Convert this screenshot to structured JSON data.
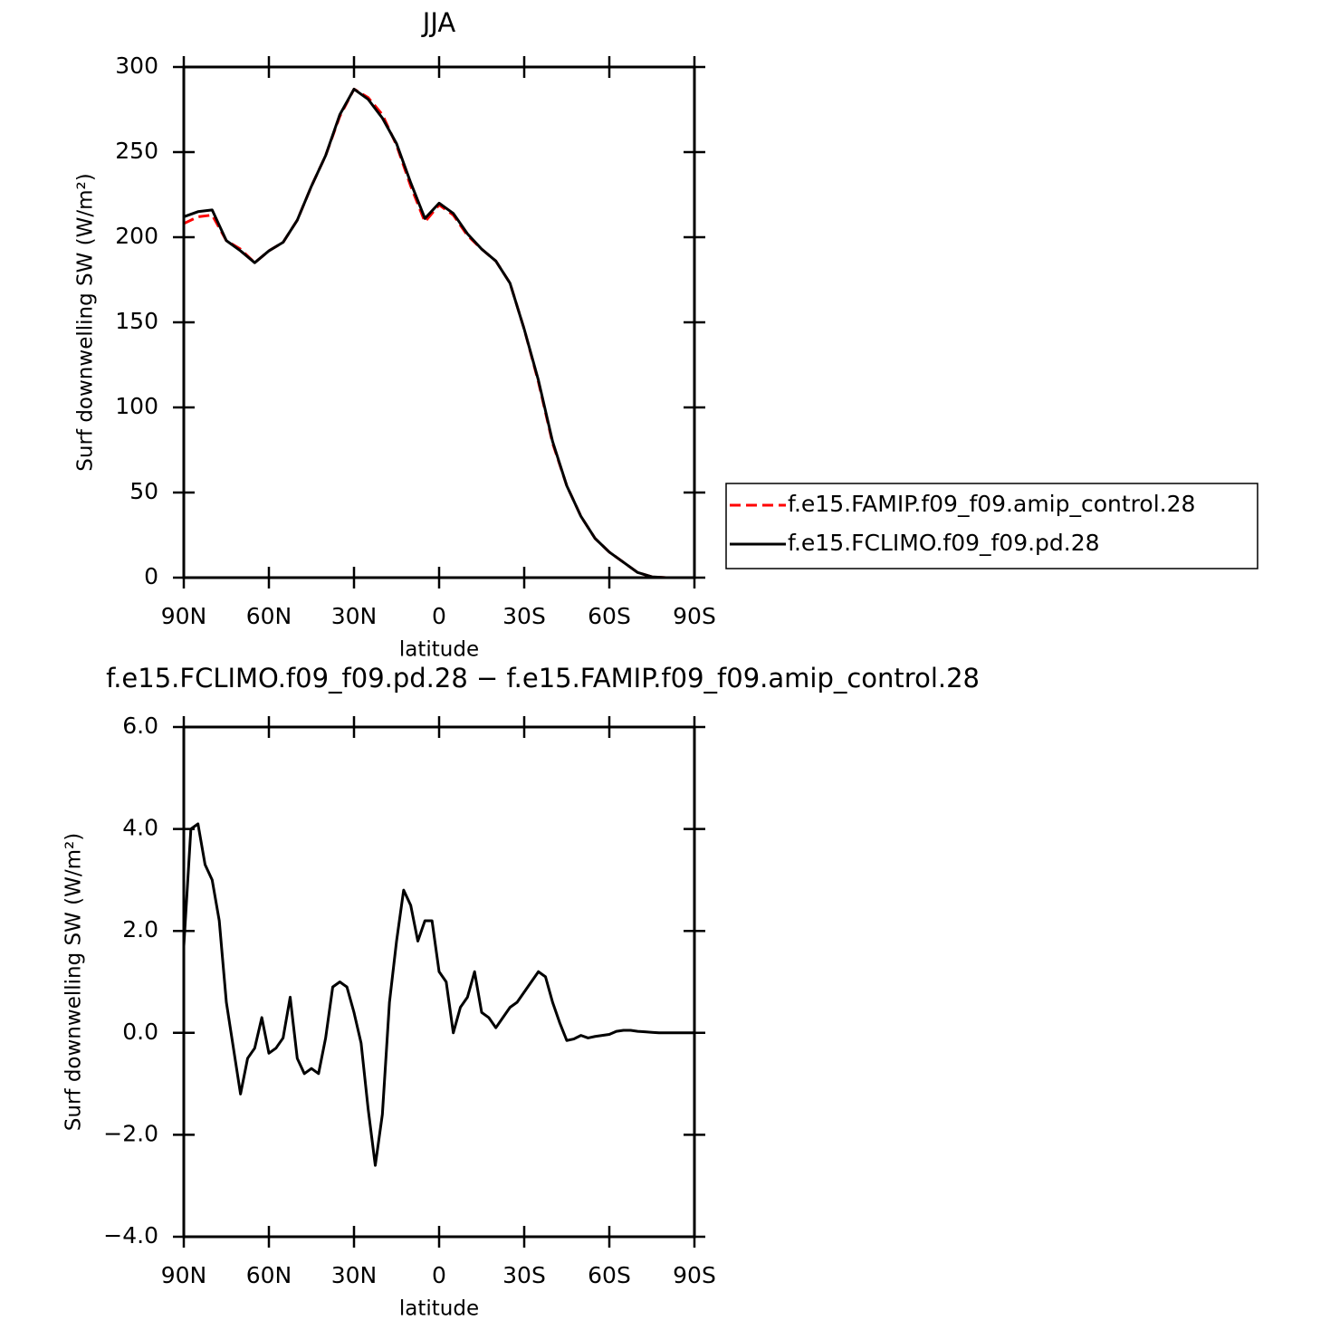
{
  "chart_data": [
    {
      "type": "line",
      "title": "JJA",
      "xlabel": "latitude",
      "ylabel": "Surf downwelling SW (W/m²)",
      "x": [
        90,
        85,
        80,
        75,
        70,
        65,
        60,
        55,
        50,
        45,
        40,
        35,
        30,
        25,
        20,
        15,
        10,
        5,
        0,
        -5,
        -10,
        -15,
        -20,
        -25,
        -30,
        -35,
        -40,
        -45,
        -50,
        -55,
        -60,
        -65,
        -70,
        -75,
        -80,
        -85,
        -90
      ],
      "series": [
        {
          "name": "f.e15.FAMIP.f09_f09.amip_control.28",
          "color": "#ff0000",
          "linestyle": "dashed",
          "values": [
            208,
            212,
            213,
            198,
            193,
            185,
            192,
            197,
            210,
            230,
            248,
            271,
            287,
            282,
            272,
            254,
            230,
            209,
            219,
            213,
            201,
            193,
            186,
            173,
            146,
            115,
            79,
            54,
            36,
            23,
            15,
            9,
            3,
            0.5,
            0,
            0,
            0
          ]
        },
        {
          "name": "f.e15.FCLIMO.f09_f09.pd.28",
          "color": "#000000",
          "linestyle": "solid",
          "values": [
            212,
            215,
            216,
            198,
            192,
            185,
            192,
            197,
            210,
            230,
            248,
            272,
            287,
            281,
            270,
            255,
            232,
            211,
            220,
            214,
            202,
            193,
            186,
            173,
            146,
            116,
            80,
            54,
            36,
            23,
            15,
            9,
            3,
            0.5,
            0,
            0,
            0
          ]
        }
      ],
      "xlim": [
        90,
        -90
      ],
      "xticks": [
        {
          "value": 90,
          "label": "90N"
        },
        {
          "value": 60,
          "label": "60N"
        },
        {
          "value": 30,
          "label": "30N"
        },
        0,
        {
          "value": -30,
          "label": "30S"
        },
        {
          "value": -60,
          "label": "60S"
        },
        {
          "value": -90,
          "label": "90S"
        }
      ],
      "ylim": [
        0,
        300
      ],
      "yticks": [
        0,
        50,
        100,
        150,
        200,
        250,
        300
      ],
      "legend": "right"
    },
    {
      "type": "line",
      "title": "f.e15.FCLIMO.f09_f09.pd.28 − f.e15.FAMIP.f09_f09.amip_control.28",
      "xlabel": "latitude",
      "ylabel": "Surf downwelling SW (W/m²)",
      "x": [
        90,
        87.5,
        85,
        82.5,
        80,
        77.5,
        75,
        72.5,
        70,
        67.5,
        65,
        62.5,
        60,
        57.5,
        55,
        52.5,
        50,
        47.5,
        45,
        42.5,
        40,
        37.5,
        35,
        32.5,
        30,
        27.5,
        25,
        22.5,
        20,
        17.5,
        15,
        12.5,
        10,
        7.5,
        5,
        2.5,
        0,
        -2.5,
        -5,
        -7.5,
        -10,
        -12.5,
        -15,
        -17.5,
        -20,
        -22.5,
        -25,
        -27.5,
        -30,
        -32.5,
        -35,
        -37.5,
        -40,
        -42.5,
        -45,
        -47.5,
        -50,
        -52.5,
        -55,
        -57.5,
        -60,
        -62.5,
        -65,
        -67.5,
        -70,
        -72.5,
        -75,
        -77.5,
        -80,
        -82.5,
        -85,
        -87.5,
        -90
      ],
      "series": [
        {
          "color": "#000000",
          "linestyle": "solid",
          "values": [
            1.7,
            4.0,
            4.1,
            3.3,
            3.0,
            2.2,
            0.6,
            -0.3,
            -1.2,
            -0.5,
            -0.3,
            0.3,
            -0.4,
            -0.3,
            -0.1,
            0.7,
            -0.5,
            -0.8,
            -0.7,
            -0.8,
            -0.1,
            0.9,
            1.0,
            0.9,
            0.4,
            -0.2,
            -1.5,
            -2.6,
            -1.6,
            0.6,
            1.8,
            2.8,
            2.5,
            1.8,
            2.2,
            2.2,
            1.2,
            1.0,
            0.0,
            0.5,
            0.7,
            1.2,
            0.4,
            0.3,
            0.1,
            0.3,
            0.5,
            0.6,
            0.8,
            1.0,
            1.2,
            1.1,
            0.6,
            0.2,
            -0.15,
            -0.12,
            -0.05,
            -0.1,
            -0.07,
            -0.05,
            -0.03,
            0.03,
            0.05,
            0.05,
            0.03,
            0.02,
            0.01,
            0,
            0,
            0,
            0,
            0,
            0
          ]
        }
      ],
      "xlim": [
        90,
        -90
      ],
      "xticks": [
        {
          "value": 90,
          "label": "90N"
        },
        {
          "value": 60,
          "label": "60N"
        },
        {
          "value": 30,
          "label": "30N"
        },
        0,
        {
          "value": -30,
          "label": "30S"
        },
        {
          "value": -60,
          "label": "60S"
        },
        {
          "value": -90,
          "label": "90S"
        }
      ],
      "ylim": [
        -4,
        6
      ],
      "yticks": [
        {
          "value": -4,
          "label": "−4.0"
        },
        {
          "value": -2,
          "label": "−2.0"
        },
        {
          "value": 0,
          "label": "0.0"
        },
        {
          "value": 2,
          "label": "2.0"
        },
        {
          "value": 4,
          "label": "4.0"
        },
        {
          "value": 6,
          "label": "6.0"
        }
      ]
    }
  ]
}
